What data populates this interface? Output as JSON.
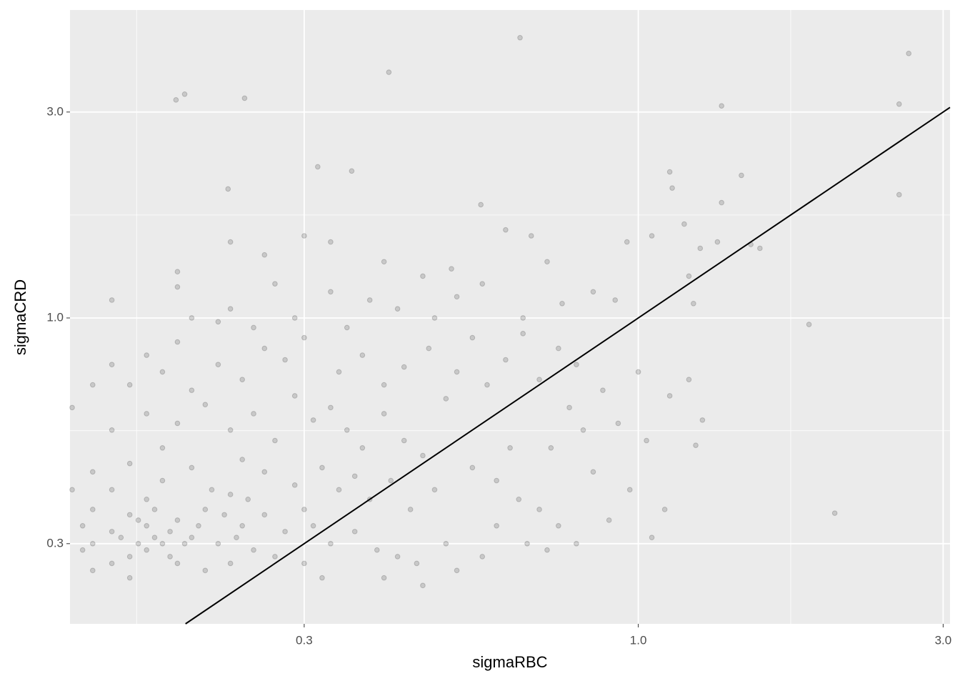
{
  "chart_data": {
    "type": "scatter",
    "x_label": "sigmaRBC",
    "y_label": "sigmaCRD",
    "log_x": true,
    "log_y": true,
    "xlim": [
      0.129,
      3.075
    ],
    "ylim": [
      0.1956,
      5.17
    ],
    "xticks": [
      0.3,
      {
        "value": 1,
        "label": "1.0"
      },
      {
        "value": 3,
        "label": "3.0"
      }
    ],
    "yticks": [
      0.3,
      {
        "value": 1,
        "label": "1.0"
      },
      {
        "value": 3,
        "label": "3.0"
      }
    ],
    "x_minor_grid": [
      0.164,
      1.732
    ],
    "y_minor_grid": [
      0.548,
      1.732
    ],
    "grid": true,
    "color": "#000000",
    "opacity": 0.15,
    "identity_line": true,
    "x": [
      0.14,
      0.15,
      0.16,
      0.17,
      0.18,
      0.15,
      0.16,
      0.17,
      0.19,
      0.2,
      0.14,
      0.15,
      0.17,
      0.18,
      0.21,
      0.22,
      0.24,
      0.23,
      0.25,
      0.26,
      0.14,
      0.16,
      0.19,
      0.21,
      0.23,
      0.27,
      0.28,
      0.3,
      0.29,
      0.26,
      0.24,
      0.2,
      0.18,
      0.16,
      0.14,
      0.135,
      0.135,
      0.155,
      0.165,
      0.175,
      0.185,
      0.165,
      0.175,
      0.185,
      0.195,
      0.205,
      0.215,
      0.225,
      0.235,
      0.245,
      0.15,
      0.17,
      0.19,
      0.21,
      0.23,
      0.25,
      0.27,
      0.29,
      0.31,
      0.33,
      0.35,
      0.37,
      0.4,
      0.43,
      0.46,
      0.32,
      0.34,
      0.36,
      0.38,
      0.41,
      0.44,
      0.48,
      0.31,
      0.33,
      0.36,
      0.39,
      0.42,
      0.45,
      0.4,
      0.46,
      0.3,
      0.32,
      0.16,
      0.18,
      0.2,
      0.22,
      0.24,
      0.26,
      0.28,
      0.3,
      0.25,
      0.22,
      0.19,
      0.17,
      0.15,
      0.14,
      0.34,
      0.37,
      0.4,
      0.43,
      0.47,
      0.5,
      0.52,
      0.55,
      0.58,
      0.62,
      0.66,
      0.7,
      0.75,
      0.8,
      0.35,
      0.42,
      0.48,
      0.38,
      0.33,
      0.29,
      0.27,
      0.23,
      0.2,
      0.13,
      0.13,
      0.26,
      0.23,
      0.19,
      0.19,
      0.15,
      0.3,
      0.33,
      0.4,
      0.46,
      0.51,
      0.57,
      0.62,
      0.68,
      0.72,
      0.85,
      0.92,
      0.96,
      1.05,
      1.18,
      1.25,
      1.33,
      1.5,
      1.55,
      1.2,
      1.22,
      0.76,
      0.66,
      0.52,
      0.55,
      0.6,
      0.65,
      0.7,
      0.75,
      0.8,
      0.9,
      0.97,
      1.05,
      1.1,
      0.67,
      0.72,
      0.6,
      0.57,
      0.52,
      0.5,
      0.63,
      0.73,
      0.82,
      0.93,
      1.03,
      0.88,
      1.0,
      1.12,
      1.2,
      0.78,
      0.85,
      0.653,
      0.407,
      0.189,
      0.195,
      0.242,
      2.65,
      2.56,
      1.35,
      0.315,
      0.356,
      0.228,
      2.56,
      1.45,
      1.12,
      1.13,
      1.35,
      0.567,
      2.03,
      1.85,
      1.26,
      1.23
    ],
    "values": [
      0.3,
      0.32,
      0.28,
      0.33,
      0.3,
      0.27,
      0.35,
      0.29,
      0.34,
      0.31,
      0.36,
      0.4,
      0.38,
      0.42,
      0.36,
      0.3,
      0.33,
      0.39,
      0.29,
      0.35,
      0.26,
      0.25,
      0.27,
      0.26,
      0.27,
      0.28,
      0.32,
      0.36,
      0.41,
      0.44,
      0.47,
      0.45,
      0.5,
      0.46,
      0.44,
      0.33,
      0.29,
      0.31,
      0.3,
      0.31,
      0.32,
      0.34,
      0.36,
      0.28,
      0.3,
      0.33,
      0.4,
      0.35,
      0.31,
      0.38,
      0.55,
      0.6,
      0.57,
      0.63,
      0.55,
      0.6,
      0.52,
      0.66,
      0.58,
      0.62,
      0.55,
      0.5,
      0.6,
      0.52,
      0.48,
      0.45,
      0.4,
      0.43,
      0.38,
      0.42,
      0.36,
      0.4,
      0.33,
      0.3,
      0.32,
      0.29,
      0.28,
      0.27,
      0.25,
      0.24,
      0.27,
      0.25,
      0.7,
      0.75,
      0.68,
      0.78,
      0.72,
      0.85,
      0.8,
      0.9,
      0.95,
      0.98,
      0.88,
      0.82,
      0.78,
      0.7,
      0.75,
      0.82,
      0.7,
      0.77,
      0.85,
      0.65,
      0.75,
      0.9,
      0.7,
      0.8,
      0.92,
      0.72,
      0.85,
      0.78,
      0.95,
      1.05,
      1.0,
      1.1,
      1.15,
      1.0,
      1.2,
      1.05,
      1.0,
      0.62,
      0.4,
      1.4,
      1.5,
      1.28,
      1.18,
      1.1,
      1.55,
      1.5,
      1.35,
      1.25,
      1.3,
      1.2,
      1.6,
      1.55,
      1.35,
      1.15,
      1.1,
      1.5,
      1.55,
      1.65,
      1.45,
      1.5,
      1.48,
      1.45,
      1.25,
      1.08,
      1.08,
      1.0,
      1.12,
      0.45,
      0.42,
      0.38,
      0.36,
      0.33,
      0.3,
      0.34,
      0.4,
      0.31,
      0.36,
      0.3,
      0.29,
      0.33,
      0.28,
      0.26,
      0.3,
      0.5,
      0.5,
      0.55,
      0.57,
      0.52,
      0.68,
      0.75,
      0.66,
      0.72,
      0.62,
      0.44,
      4.46,
      3.71,
      3.2,
      3.3,
      3.23,
      4.1,
      3.13,
      3.1,
      2.24,
      2.19,
      1.99,
      1.93,
      2.14,
      2.18,
      2.0,
      1.85,
      1.83,
      0.353,
      0.966,
      0.58,
      0.507
    ]
  }
}
